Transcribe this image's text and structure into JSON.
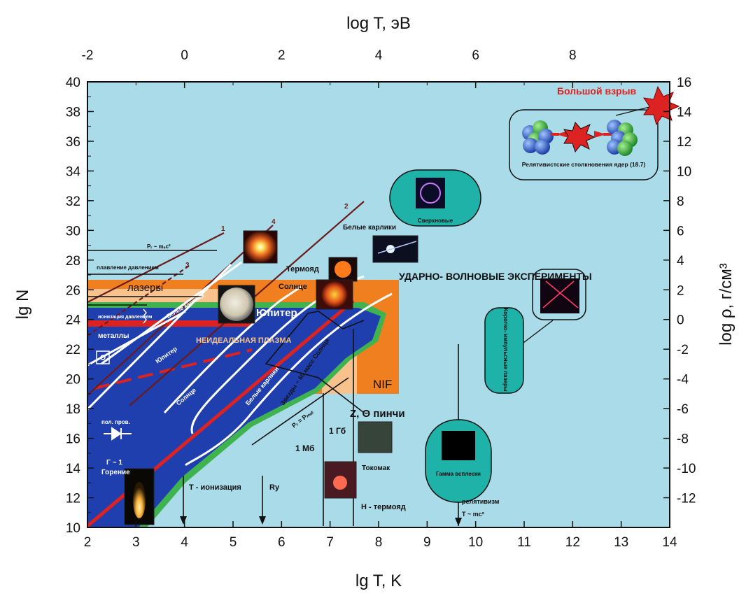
{
  "chart_data": {
    "type": "diagram",
    "xlabel_bottom": "lg T, K",
    "xlabel_top": "log T, эВ",
    "ylabel_left": "lg N",
    "ylabel_right": "log ρ, г/см³",
    "x_range": [
      2,
      14
    ],
    "y_range": [
      10,
      40
    ],
    "x_ticks": [
      "2",
      "3",
      "4",
      "5",
      "6",
      "7",
      "8",
      "9",
      "10",
      "11",
      "12",
      "13",
      "14"
    ],
    "x_top_ticks": [
      "-2",
      "0",
      "2",
      "4",
      "6",
      "8"
    ],
    "y_ticks": [
      "10",
      "12",
      "14",
      "16",
      "18",
      "20",
      "22",
      "24",
      "26",
      "28",
      "30",
      "32",
      "34",
      "36",
      "38",
      "40"
    ],
    "y_right_ticks": [
      "-12",
      "-10",
      "-8",
      "-6",
      "-4",
      "-2",
      "0",
      "2",
      "4",
      "6",
      "8",
      "10",
      "12",
      "14",
      "16"
    ],
    "labels": {
      "big_bang": "Большой взрыв",
      "relativistic": "Релятивистские столкновения ядер (18.7)",
      "supernova": "Сверхновые",
      "white_dwarfs": "Белые карлики",
      "thermonuclear": "Термояд",
      "sun": "Солнце",
      "jupiter": "Юпитер",
      "lasers": "лазеры",
      "shock": "УДАРНО- ВОЛНОВЫЕ ЭКСПЕРИМЕНТЫ",
      "nonideal": "НЕИДЕАЛЬНАЯ ПЛАЗМА",
      "nif": "NIF",
      "pinch": "Z, Θ пинчи",
      "gb": "1 Гб",
      "mb": "1 Мб",
      "tokamak": "Токомак",
      "h_thermo": "Н - термояд",
      "gamma": "Гамма всплески",
      "short_lasers": "Коротко- импульсные лазеры",
      "relativism": "релятивизм",
      "t_mc2": "T ~ mc²",
      "ionization": "T - ионизация",
      "ry": "Ry",
      "combustion": "Горение",
      "gamma1": "Γ ~ 1",
      "semicond": "пол. пров.",
      "metals": "металлы",
      "melting": "плавление давлением",
      "pr_mc2": "Pᵣ ~ mₑc²",
      "ion_pressure": "ионизация давлением",
      "jupiter_line": "Юпитер",
      "sun_line": "Солнце",
      "wd_line": "Белые карлики",
      "stars_line": "Звезды ~ 60 масс Солнца",
      "pr_pmat": "Pᵣ = Pₘₐₜ",
      "n1": "1",
      "n2": "2",
      "n3": "3",
      "n4": "4",
      "wd_line2": "Белые карлики"
    }
  },
  "colors": {
    "background": "#a9dbe8",
    "deep_blue": "#1f3fae",
    "orange": "#f0801f",
    "peach": "#f7c28c",
    "green": "#3fb34f",
    "red": "#dd2222",
    "teal": "#1fb2a8",
    "brown": "#6b1a1a"
  }
}
